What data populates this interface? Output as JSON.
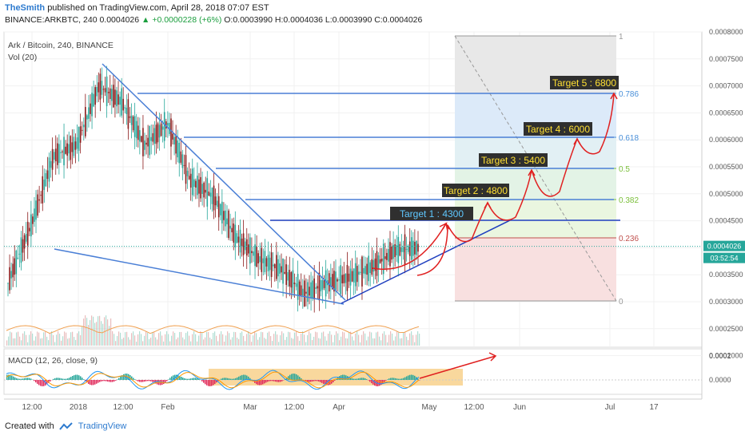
{
  "header": {
    "author": "TheSmith",
    "published": "published on TradingView.com, April 28, 2018 07:07 EST",
    "ticker_line_prefix": "BINANCE:ARKBTC, 240 0.0004026",
    "change": "▲ +0.0000228 (+6%)",
    "ohlc": "O:0.0003990 H:0.0004036 L:0.0003990 C:0.0004026"
  },
  "pane": {
    "symbol": "Ark / Bitcoin, 240, BINANCE",
    "volume": "Vol (20)",
    "macd": "MACD (12, 26, close, 9)"
  },
  "price_axis": {
    "ticks": [
      "0.0008000",
      "0.0007500",
      "0.0007000",
      "0.0006500",
      "0.0006000",
      "0.0005500",
      "0.0005000",
      "0.0004500",
      "0.0004000",
      "0.0003500",
      "0.0003000",
      "0.0002500",
      "0.0002000"
    ],
    "last_price": "0.0004026",
    "countdown": "03:52:54"
  },
  "macd_axis": {
    "ticks": [
      "0.0001",
      "0.0000"
    ]
  },
  "time_axis": {
    "ticks": [
      "12:00",
      "2018",
      "12:00",
      "Feb",
      "Mar",
      "12:00",
      "Apr",
      "May",
      "12:00",
      "Jun",
      "Jul",
      "17"
    ]
  },
  "fib_levels": [
    "1",
    "0.786",
    "0.618",
    "0.5",
    "0.382",
    "0.236",
    "0"
  ],
  "targets": [
    "Target 1 : 4300",
    "Target 2 : 4800",
    "Target 3 : 5400",
    "Target 4 : 6000",
    "Target 5 : 6800"
  ],
  "colors": {
    "up": "#26a69a",
    "down": "#8b1a1a",
    "trendline": "#4a7fd6",
    "arrow": "#e02020",
    "fib_top": "#e8e8e8",
    "fib_blue": "#dceaf9",
    "fib_green": "#eaf6e0",
    "fib_red": "#f8e0e0",
    "target_bg": "#2f2f2f",
    "target_fg": "#ffe033",
    "target1_fg": "#5fc8ff",
    "macd_box": "#f7c874"
  },
  "footer": {
    "created_with": "Created with",
    "brand": "TradingView"
  },
  "chart_data": {
    "type": "candlestick",
    "title": "Ark / Bitcoin, 240, BINANCE",
    "ylim": [
      0.00019,
      0.0008
    ],
    "target_prices": [
      0.00043,
      0.00048,
      0.00054,
      0.0006,
      0.00068
    ],
    "series": [
      {
        "name": "ARKBTC",
        "path_points": [
          [
            0.0003,
            0.00037
          ],
          [
            0.00036,
            0.00052
          ],
          [
            0.0005,
            0.00064
          ],
          [
            0.0006,
            0.00058
          ],
          [
            0.00066,
            0.00074
          ],
          [
            0.0007,
            0.00064
          ],
          [
            0.0006,
            0.00058
          ],
          [
            0.00062,
            0.00064
          ],
          [
            0.00055,
            0.0005
          ],
          [
            0.0005,
            0.00049
          ],
          [
            0.00046,
            0.00038
          ],
          [
            0.0004,
            0.00036
          ],
          [
            0.00037,
            0.00035
          ],
          [
            0.00033,
            0.0003
          ],
          [
            0.00033,
            0.00034
          ],
          [
            0.00035,
            0.00034
          ],
          [
            0.00036,
            0.00037
          ],
          [
            0.00039,
            0.0004
          ],
          [
            0.0004,
            0.0004
          ]
        ]
      }
    ]
  }
}
